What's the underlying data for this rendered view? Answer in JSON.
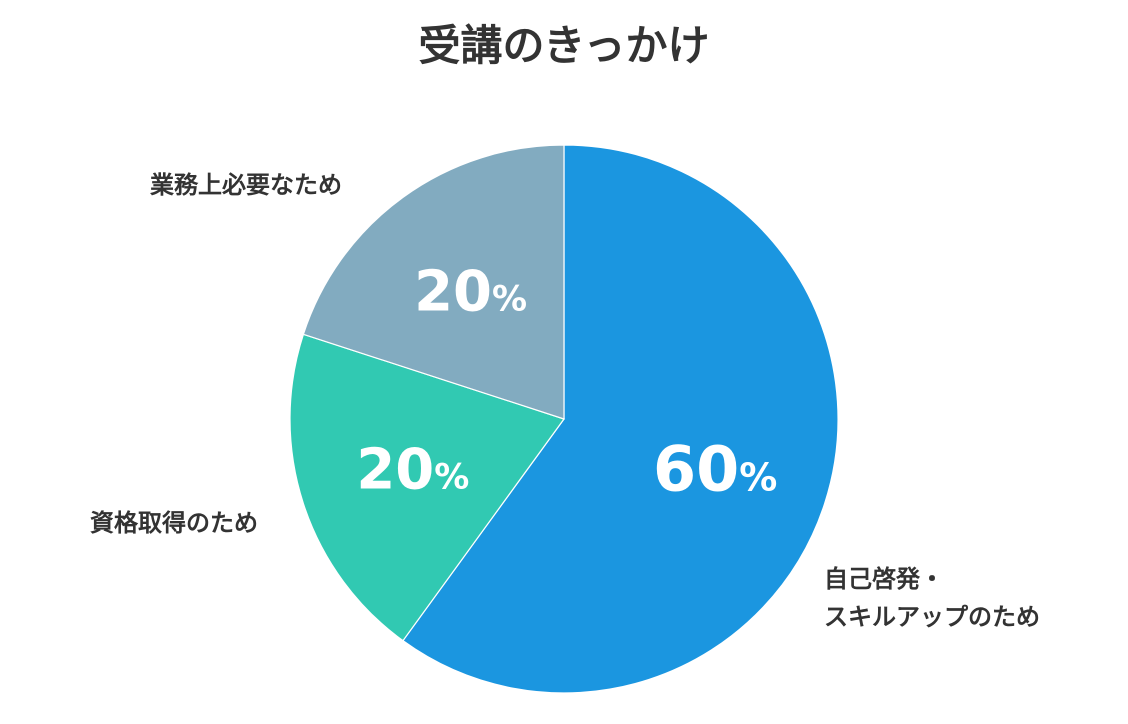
{
  "chart_data": {
    "type": "pie",
    "title": "受講のきっかけ",
    "categories": [
      "自己啓発・スキルアップのため",
      "資格取得のため",
      "業務上必要なため"
    ],
    "label_lines": [
      [
        "自己啓発・",
        "スキルアップのため"
      ],
      [
        "資格取得のため"
      ],
      [
        "業務上必要なため"
      ]
    ],
    "values": [
      60,
      20,
      20
    ],
    "value_suffix": "%",
    "colors": [
      "#1b96e0",
      "#31c9b2",
      "#82abc0"
    ],
    "start_angle_deg": 0,
    "direction": "clockwise"
  }
}
